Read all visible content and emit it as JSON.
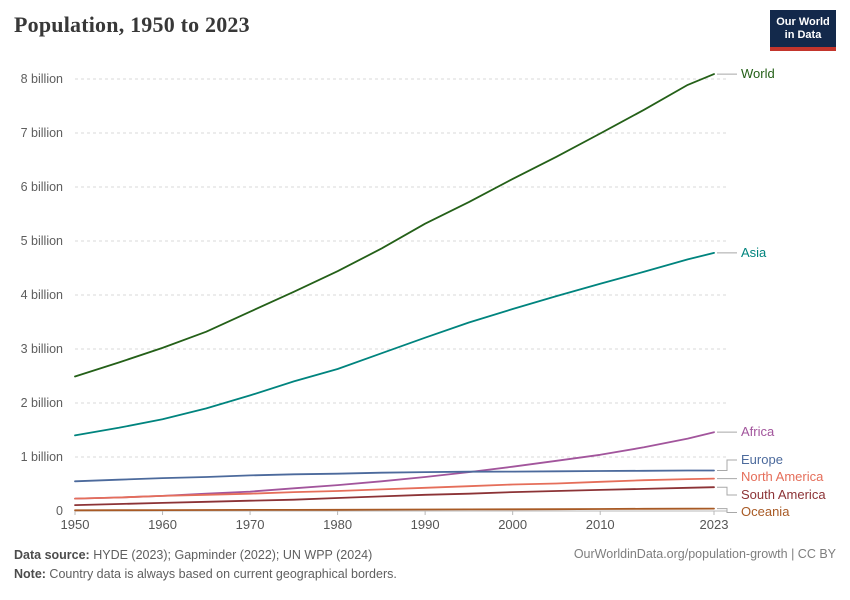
{
  "header": {
    "title": "Population, 1950 to 2023"
  },
  "logo": {
    "line1": "Our World",
    "line2": "in Data",
    "bg_color": "#13294B",
    "accent_color": "#C3352C"
  },
  "chart_data": {
    "type": "line",
    "title": "Population, 1950 to 2023",
    "xlabel": "",
    "ylabel": "",
    "unit": "billion people",
    "xlim": [
      1950,
      2023
    ],
    "ylim": [
      0,
      8.3
    ],
    "grid": "horizontal dashed",
    "legend_position": "right-edge labels",
    "x": [
      1950,
      1955,
      1960,
      1965,
      1970,
      1975,
      1980,
      1985,
      1990,
      1995,
      2000,
      2005,
      2010,
      2015,
      2020,
      2023
    ],
    "x_ticks": [
      1950,
      1960,
      1970,
      1980,
      1990,
      2000,
      2010,
      2023
    ],
    "y_ticks": [
      {
        "value": 0,
        "label": "0"
      },
      {
        "value": 1,
        "label": "1 billion"
      },
      {
        "value": 2,
        "label": "2 billion"
      },
      {
        "value": 3,
        "label": "3 billion"
      },
      {
        "value": 4,
        "label": "4 billion"
      },
      {
        "value": 5,
        "label": "5 billion"
      },
      {
        "value": 6,
        "label": "6 billion"
      },
      {
        "value": 7,
        "label": "7 billion"
      },
      {
        "value": 8,
        "label": "8 billion"
      }
    ],
    "series": [
      {
        "name": "World",
        "color": "#246018",
        "values": [
          2.49,
          2.75,
          3.02,
          3.32,
          3.69,
          4.06,
          4.44,
          4.86,
          5.32,
          5.72,
          6.15,
          6.56,
          6.99,
          7.43,
          7.89,
          8.09
        ]
      },
      {
        "name": "Asia",
        "color": "#00847E",
        "values": [
          1.4,
          1.54,
          1.7,
          1.9,
          2.14,
          2.4,
          2.63,
          2.92,
          3.21,
          3.49,
          3.74,
          3.98,
          4.21,
          4.43,
          4.66,
          4.78
        ]
      },
      {
        "name": "Africa",
        "color": "#A2559C",
        "values": [
          0.23,
          0.25,
          0.28,
          0.32,
          0.36,
          0.42,
          0.48,
          0.55,
          0.63,
          0.72,
          0.82,
          0.93,
          1.04,
          1.18,
          1.34,
          1.46
        ]
      },
      {
        "name": "Europe",
        "color": "#4C6A9C",
        "values": [
          0.55,
          0.58,
          0.61,
          0.63,
          0.66,
          0.68,
          0.69,
          0.71,
          0.72,
          0.727,
          0.73,
          0.735,
          0.74,
          0.745,
          0.75,
          0.75
        ]
      },
      {
        "name": "North America",
        "color": "#E56E5A",
        "values": [
          0.23,
          0.25,
          0.28,
          0.3,
          0.32,
          0.35,
          0.37,
          0.4,
          0.43,
          0.46,
          0.49,
          0.51,
          0.54,
          0.57,
          0.59,
          0.6
        ]
      },
      {
        "name": "South America",
        "color": "#8C3336",
        "values": [
          0.11,
          0.13,
          0.15,
          0.17,
          0.19,
          0.21,
          0.24,
          0.27,
          0.3,
          0.32,
          0.35,
          0.37,
          0.39,
          0.41,
          0.43,
          0.44
        ]
      },
      {
        "name": "Oceania",
        "color": "#A85A25",
        "values": [
          0.013,
          0.014,
          0.016,
          0.018,
          0.02,
          0.021,
          0.023,
          0.025,
          0.027,
          0.029,
          0.031,
          0.034,
          0.037,
          0.04,
          0.043,
          0.045
        ]
      }
    ]
  },
  "footer": {
    "source_label": "Data source:",
    "source_text": " HYDE (2023); Gapminder (2022); UN WPP (2024)",
    "note_label": "Note:",
    "note_text": " Country data is always based on current geographical borders.",
    "link_text": "OurWorldinData.org/population-growth | CC BY"
  }
}
